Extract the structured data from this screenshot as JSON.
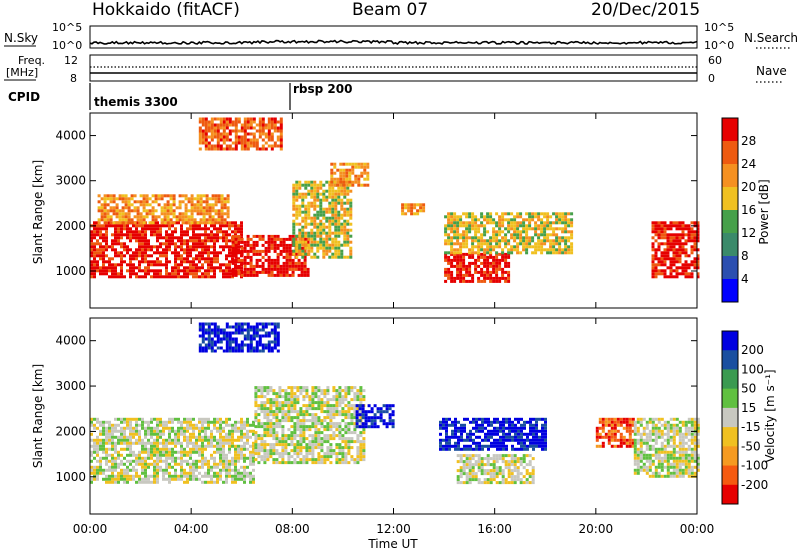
{
  "header": {
    "station": "Hokkaido (fitACF)",
    "beam": "Beam 07",
    "date": "20/Dec/2015"
  },
  "top_panels": {
    "nsky_label": "N.Sky",
    "nsky_ticks": [
      "10^5",
      "10^0"
    ],
    "nsearch_label": "N.Search",
    "freq_label_1": "Freq.",
    "freq_label_2": "[MHz]",
    "freq_ticks": [
      "12",
      "8"
    ],
    "nave_label": "Nave",
    "nave_ticks": [
      "60",
      "0"
    ],
    "cpid_label": "CPID",
    "cpid_entries": [
      {
        "name": "themis 3300",
        "start_hour": 0
      },
      {
        "name": "rbsp 200",
        "start_hour": 8
      }
    ]
  },
  "chart_data": [
    {
      "type": "heatmap",
      "panel": "power",
      "ylabel": "Slant Range [km]",
      "y_ticks": [
        1000,
        2000,
        3000,
        4000
      ],
      "ylim": [
        180,
        4500
      ],
      "xlim": [
        0,
        24
      ],
      "colorbar": {
        "label": "Power [dB]",
        "ticks": [
          "4",
          "8",
          "12",
          "16",
          "20",
          "24",
          "28"
        ],
        "colors": [
          "#0000ff",
          "#2b4fb0",
          "#3a8a6a",
          "#46a04a",
          "#f0c020",
          "#f59020",
          "#ee5a10",
          "#e60000"
        ]
      },
      "regions": [
        {
          "t0": 0.0,
          "t1": 6.0,
          "r0": 900,
          "r1": 2100,
          "level": 7
        },
        {
          "t0": 0.3,
          "t1": 5.5,
          "r0": 2100,
          "r1": 2700,
          "level": 5
        },
        {
          "t0": 4.3,
          "t1": 7.6,
          "r0": 3700,
          "r1": 4400,
          "level": 6
        },
        {
          "t0": 5.6,
          "t1": 8.6,
          "r0": 900,
          "r1": 1800,
          "level": 7
        },
        {
          "t0": 8.0,
          "t1": 10.3,
          "r0": 1300,
          "r1": 3000,
          "level": 4
        },
        {
          "t0": 9.5,
          "t1": 11.0,
          "r0": 2900,
          "r1": 3400,
          "level": 5
        },
        {
          "t0": 12.3,
          "t1": 13.2,
          "r0": 2300,
          "r1": 2500,
          "level": 5
        },
        {
          "t0": 14.0,
          "t1": 16.5,
          "r0": 800,
          "r1": 1400,
          "level": 7
        },
        {
          "t0": 14.0,
          "t1": 19.0,
          "r0": 1400,
          "r1": 2300,
          "level": 4
        },
        {
          "t0": 22.2,
          "t1": 24.0,
          "r0": 900,
          "r1": 2100,
          "level": 7
        }
      ]
    },
    {
      "type": "heatmap",
      "panel": "velocity",
      "ylabel": "Slant Range [km]",
      "y_ticks": [
        1000,
        2000,
        3000,
        4000
      ],
      "ylim": [
        180,
        4500
      ],
      "xlim": [
        0,
        24
      ],
      "x_ticks": [
        "00:00",
        "04:00",
        "08:00",
        "12:00",
        "16:00",
        "20:00",
        "00:00"
      ],
      "xlabel": "Time UT",
      "colorbar": {
        "label": "Velocity [m s⁻¹]",
        "ticks": [
          "-200",
          "-100",
          "-50",
          "-15",
          "15",
          "50",
          "100",
          "200"
        ],
        "colors": [
          "#e60000",
          "#f55a10",
          "#f59a20",
          "#f0c020",
          "#c8c8c0",
          "#60c040",
          "#3a9a50",
          "#1a4fa0",
          "#0000e0"
        ]
      },
      "regions": [
        {
          "t0": 0.0,
          "t1": 6.5,
          "r0": 900,
          "r1": 2300,
          "level": 4
        },
        {
          "t0": 4.3,
          "t1": 7.5,
          "r0": 3800,
          "r1": 4400,
          "level": 8
        },
        {
          "t0": 6.5,
          "t1": 10.8,
          "r0": 1300,
          "r1": 3000,
          "level": 4
        },
        {
          "t0": 10.5,
          "t1": 12.0,
          "r0": 2100,
          "r1": 2600,
          "level": 8
        },
        {
          "t0": 13.8,
          "t1": 18.0,
          "r0": 1600,
          "r1": 2300,
          "level": 8
        },
        {
          "t0": 14.5,
          "t1": 17.5,
          "r0": 900,
          "r1": 1500,
          "level": 4
        },
        {
          "t0": 20.0,
          "t1": 21.5,
          "r0": 1700,
          "r1": 2300,
          "level": 1
        },
        {
          "t0": 21.5,
          "t1": 24.0,
          "r0": 1000,
          "r1": 2300,
          "level": 4
        }
      ]
    }
  ]
}
